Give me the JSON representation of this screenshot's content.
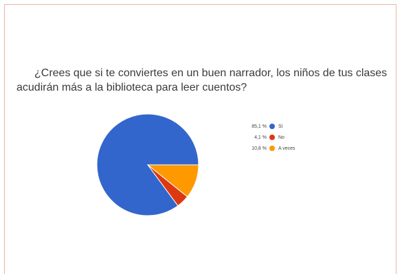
{
  "chart_data": {
    "type": "pie",
    "title": "¿Crees que si te conviertes en un buen narrador, los niños de tus clases acudirán más a la biblioteca para leer cuentos?",
    "slices": [
      {
        "label": "Sí",
        "pct_label": "85,1 %",
        "value": 85.1,
        "color": "#3366cc"
      },
      {
        "label": "No",
        "pct_label": "4,1 %",
        "value": 4.1,
        "color": "#dc3912"
      },
      {
        "label": "A veces",
        "pct_label": "10,8 %",
        "value": 10.8,
        "color": "#ff9900"
      }
    ],
    "legend_position": "right"
  }
}
